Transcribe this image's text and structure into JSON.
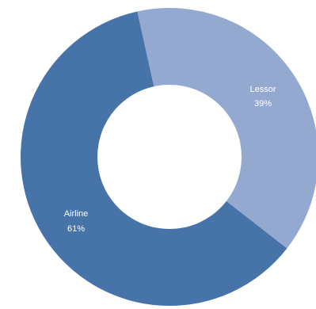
{
  "chart_data": {
    "type": "pie",
    "donut": true,
    "categories": [
      "Lessor",
      "Airline"
    ],
    "values": [
      39,
      61
    ],
    "labels": {
      "lessor_name": "Lessor",
      "lessor_pct": "39%",
      "airline_name": "Airline",
      "airline_pct": "61%"
    },
    "colors": [
      "#94a9d0",
      "#4674a8"
    ],
    "title": "",
    "legend": "none"
  }
}
